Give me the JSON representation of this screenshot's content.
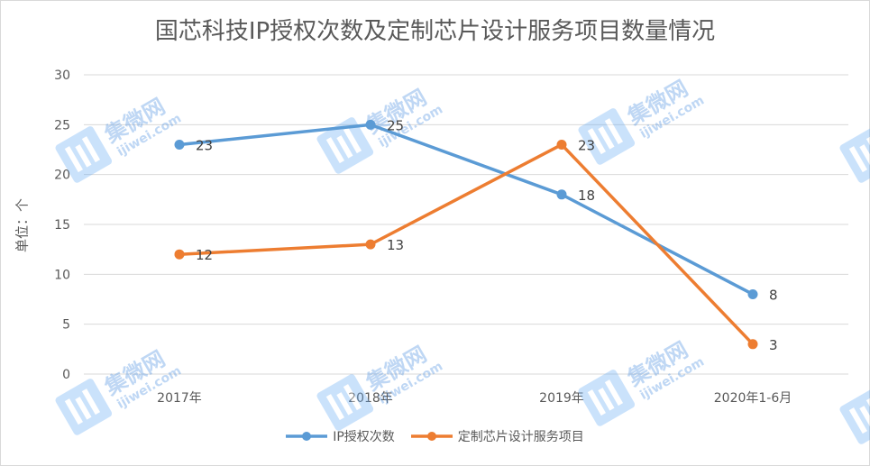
{
  "chart_data": {
    "type": "line",
    "title": "国芯科技IP授权次数及定制芯片设计服务项目数量情况",
    "ylabel": "单位：个",
    "xlabel": "",
    "categories": [
      "2017年",
      "2018年",
      "2019年",
      "2020年1-6月"
    ],
    "ylim": [
      0,
      30
    ],
    "yticks": [
      0,
      5,
      10,
      15,
      20,
      25,
      30
    ],
    "grid": true,
    "legend_placement": "bottom",
    "series": [
      {
        "name": "IP授权次数",
        "values": [
          23,
          25,
          18,
          8
        ],
        "color": "#5b9bd5"
      },
      {
        "name": "定制芯片设计服务项目",
        "values": [
          12,
          13,
          23,
          3
        ],
        "color": "#ed7d31"
      }
    ]
  },
  "watermark": {
    "logo_text": "集微网",
    "url_text": "ijiwei.com"
  }
}
